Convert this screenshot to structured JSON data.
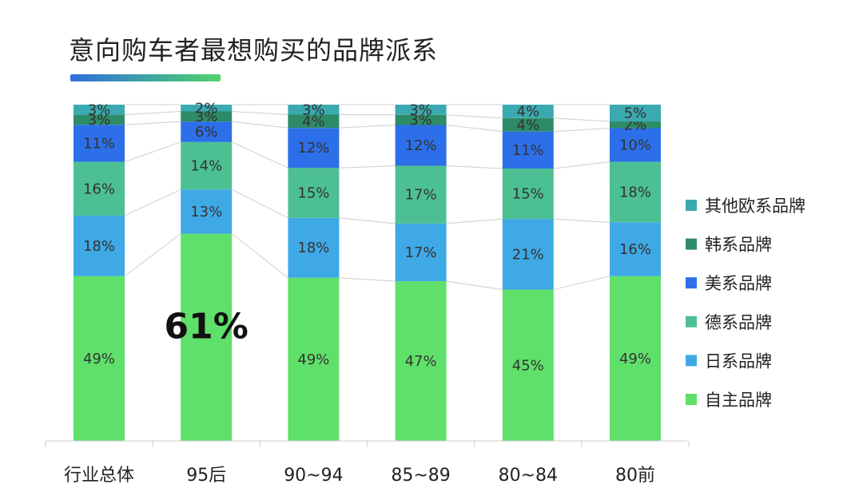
{
  "chart_data": {
    "type": "bar",
    "stacked": true,
    "title": "意向购车者最想购买的品牌派系",
    "categories": [
      "行业总体",
      "95后",
      "90~94",
      "85~89",
      "80~84",
      "80前"
    ],
    "series": [
      {
        "name": "自主品牌",
        "color": "#5fe06a",
        "values": [
          49,
          61,
          49,
          47,
          45,
          49
        ],
        "labels": [
          "49%",
          "",
          "49%",
          "47%",
          "45%",
          "49%"
        ]
      },
      {
        "name": "日系品牌",
        "color": "#3fa9e6",
        "values": [
          18,
          13,
          18,
          17,
          21,
          16
        ],
        "labels": [
          "18%",
          "13%",
          "18%",
          "17%",
          "21%",
          "16%"
        ]
      },
      {
        "name": "德系品牌",
        "color": "#4cc093",
        "values": [
          16,
          14,
          15,
          17,
          15,
          18
        ],
        "labels": [
          "16%",
          "14%",
          "15%",
          "17%",
          "15%",
          "18%"
        ]
      },
      {
        "name": "美系品牌",
        "color": "#2c6fe8",
        "values": [
          11,
          6,
          12,
          12,
          11,
          10
        ],
        "labels": [
          "11%",
          "6%",
          "12%",
          "12%",
          "11%",
          "10%"
        ]
      },
      {
        "name": "韩系品牌",
        "color": "#2e8b68",
        "values": [
          3,
          3,
          4,
          3,
          4,
          2
        ],
        "labels": [
          "3%",
          "3%",
          "4%",
          "3%",
          "4%",
          "2%"
        ]
      },
      {
        "name": "其他欧系品牌",
        "color": "#3aaab0",
        "values": [
          3,
          2,
          3,
          3,
          4,
          5
        ],
        "labels": [
          "3%",
          "2%",
          "3%",
          "3%",
          "4%",
          "5%"
        ]
      }
    ],
    "annotation": {
      "category": "95后",
      "text": "61%"
    },
    "legend": "right",
    "grid": false
  }
}
